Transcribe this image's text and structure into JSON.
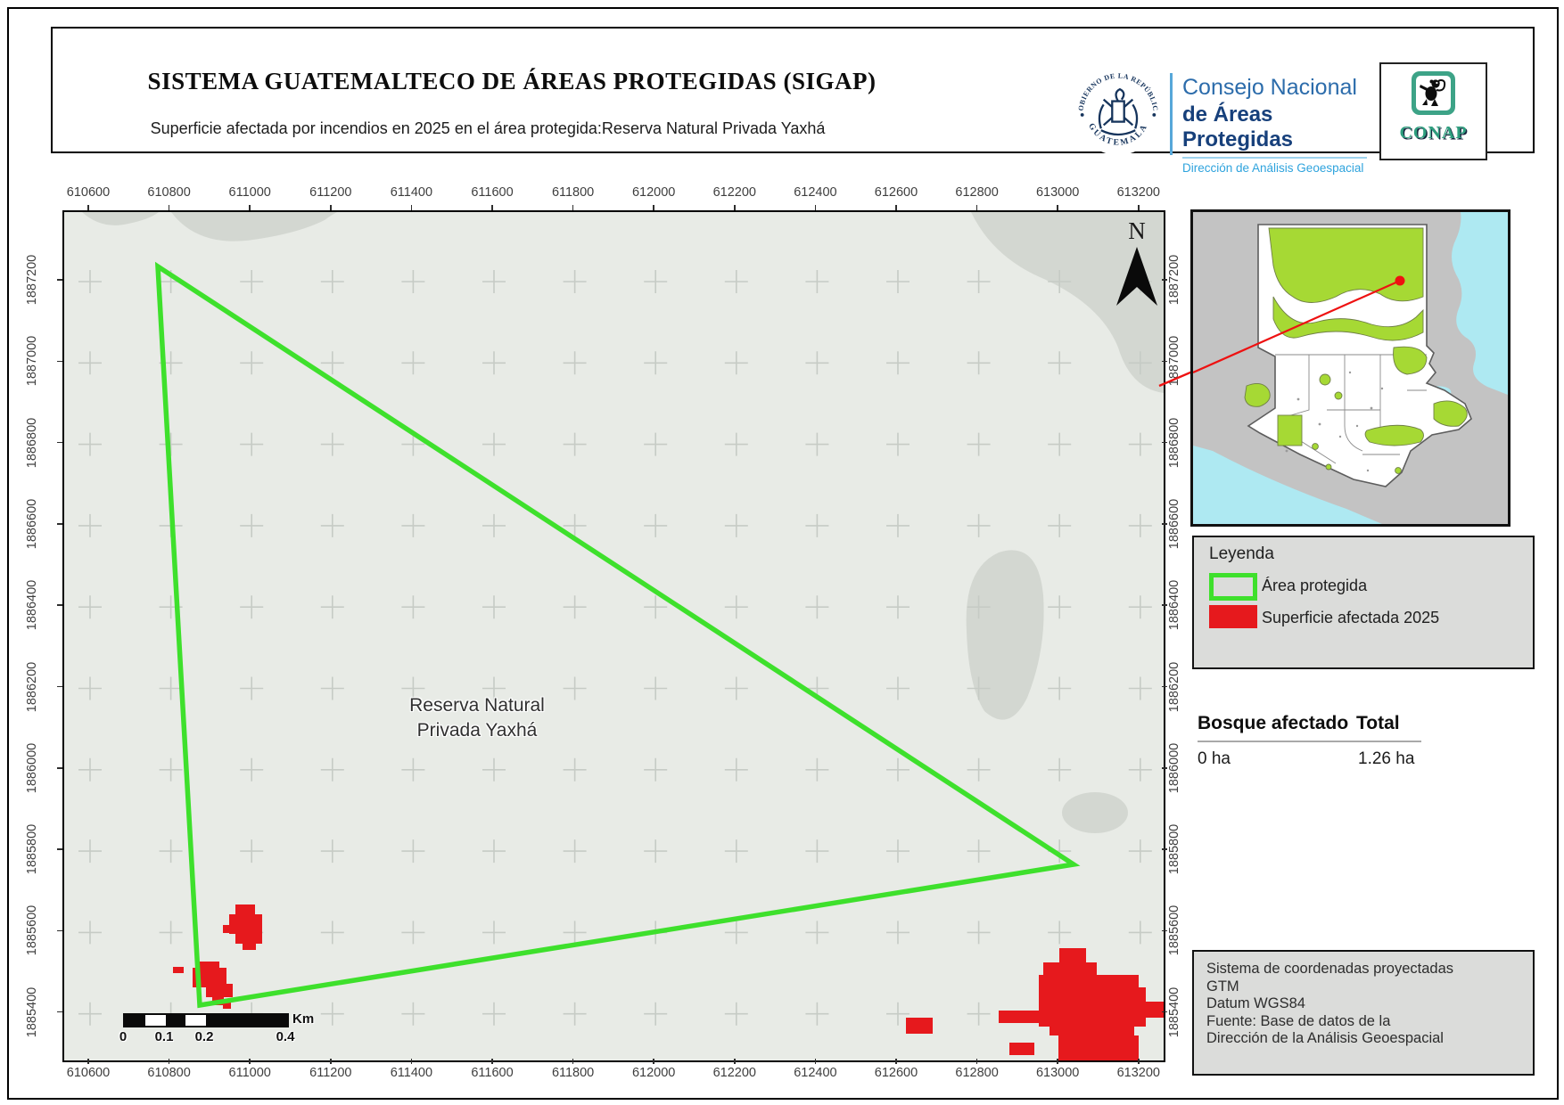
{
  "header": {
    "title": "SISTEMA GUATEMALTECO DE ÁREAS PROTEGIDAS  (SIGAP)",
    "subtitle": "Superficie afectada por incendios en 2025 en el área protegida:Reserva Natural Privada Yaxhá",
    "seal_text_top": "GOBIERNO DE LA REPÚBLICA",
    "seal_text_bottom": "GUATEMALA",
    "org_line1": "Consejo Nacional",
    "org_line2": "de Áreas Protegidas",
    "org_line3": "Dirección de Análisis Geoespacial",
    "conap_label": "CONAP"
  },
  "map": {
    "x_labels": [
      "610600",
      "610800",
      "611000",
      "611200",
      "611400",
      "611600",
      "611800",
      "612000",
      "612200",
      "612400",
      "612600",
      "612800",
      "613000",
      "613200"
    ],
    "y_labels": [
      "1887200",
      "1887000",
      "1886800",
      "1886600",
      "1886400",
      "1886200",
      "1886000",
      "1885800",
      "1885600",
      "1885400"
    ],
    "area_label_line1": "Reserva Natural",
    "area_label_line2": "Privada Yaxhá",
    "north_letter": "N"
  },
  "legend": {
    "title": "Leyenda",
    "items": [
      {
        "label": "Área protegida",
        "swatch": "green-outline"
      },
      {
        "label": "Superficie afectada 2025",
        "swatch": "red-fill"
      }
    ]
  },
  "stats": {
    "col_left": "Bosque afectado",
    "col_right": "Total",
    "value_left": "0 ha",
    "value_right": "1.26 ha"
  },
  "scalebar": {
    "ticks": [
      "0",
      "0.1",
      "0.2",
      "0.4"
    ],
    "unit": "Km"
  },
  "source_box": {
    "lines": [
      "Sistema de coordenadas proyectadas",
      "GTM",
      "Datum WGS84",
      "Fuente: Base de datos de la",
      "Dirección de la Análisis Geoespacial"
    ]
  },
  "icons": {
    "north_arrow": "north-arrow",
    "government_seal": "guatemala-coat-of-arms",
    "conap_monkey": "spider-monkey",
    "location_marker": "red-dot-with-leader-line"
  },
  "colors": {
    "protected_area_green": "#3ee02c",
    "affected_red": "#e6191d",
    "map_background": "#e8ebe6",
    "terrain_patch": "#d3d7d1",
    "inset_protected_green": "#a6d934",
    "inset_water": "#aee9f2",
    "panel_gray": "#dbdcda",
    "brand_blue_dark": "#17407b",
    "brand_blue_light": "#2ea3dd",
    "conap_green": "#2e9e7e"
  }
}
